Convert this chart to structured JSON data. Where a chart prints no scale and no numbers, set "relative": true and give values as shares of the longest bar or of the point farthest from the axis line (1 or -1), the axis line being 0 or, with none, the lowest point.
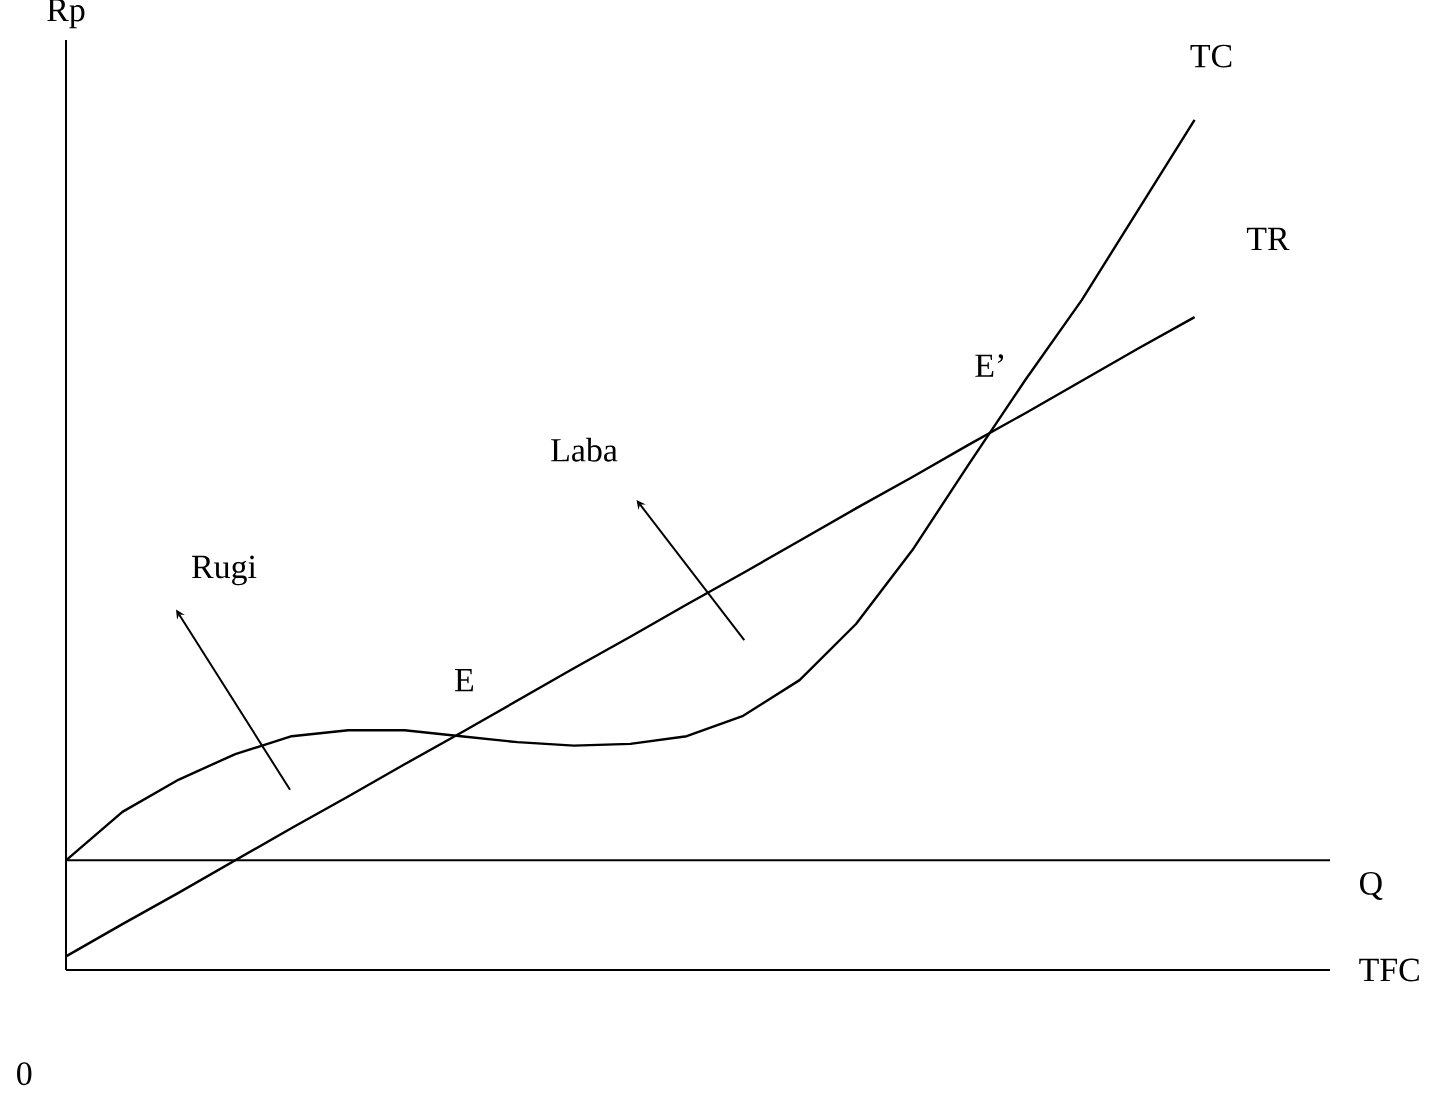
{
  "chart_data": {
    "type": "line",
    "relative": true,
    "ylabel": "Rp",
    "xlabel": "TFC",
    "categories": [
      null,
      null,
      null,
      null,
      null,
      null,
      null,
      null,
      null,
      null,
      null,
      null,
      null,
      null,
      null,
      null,
      null,
      null,
      null,
      null,
      null
    ],
    "series": [
      {
        "name": "TC",
        "color": "#000000",
        "values": [
          0.129,
          0.186,
          0.224,
          0.254,
          0.275,
          0.282,
          0.282,
          0.275,
          0.268,
          0.264,
          0.266,
          0.275,
          0.299,
          0.341,
          0.407,
          0.494,
          0.595,
          0.694,
          0.788,
          0.894,
          1.0
        ]
      },
      {
        "name": "TR",
        "color": "#000000",
        "values": [
          0.016,
          0.054,
          0.091,
          0.129,
          0.167,
          0.204,
          0.242,
          0.279,
          0.317,
          0.355,
          0.392,
          0.43,
          0.467,
          0.505,
          0.543,
          0.58,
          0.618,
          0.655,
          0.693,
          0.731,
          0.768
        ]
      }
    ],
    "ref_lines": [
      {
        "axis": "y",
        "value": 0.129,
        "label": "Q"
      }
    ],
    "annotations": [
      "Rugi",
      "Laba",
      "E",
      "E’",
      "0"
    ],
    "marker": "none",
    "line_style": "solid"
  }
}
